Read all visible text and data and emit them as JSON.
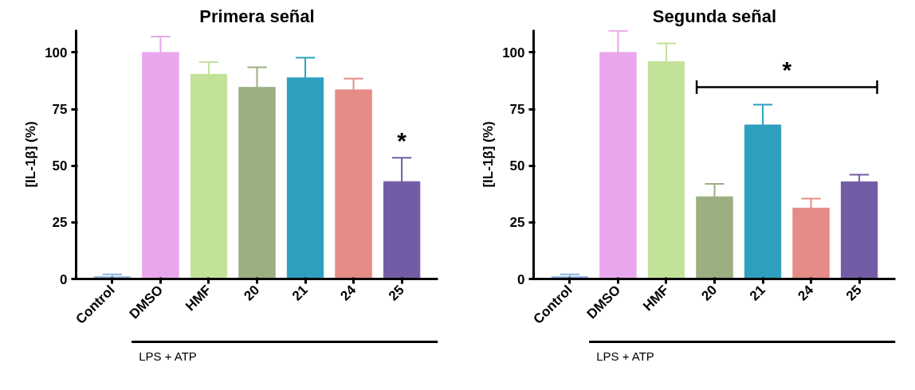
{
  "chart_data": [
    {
      "type": "bar",
      "title": "Primera señal",
      "ylabel": "[IL-1β] (%)",
      "categories": [
        "Control",
        "DMSO",
        "HMF",
        "20",
        "21",
        "24",
        "25"
      ],
      "values": [
        1,
        100,
        90.4,
        84.6,
        88.8,
        83.5,
        43
      ],
      "colors": [
        "#8fb4e0",
        "#e9a6ec",
        "#c3e299",
        "#9baf80",
        "#2f9fbf",
        "#e58c87",
        "#735ca6"
      ],
      "errors": [
        [
          1,
          2
        ],
        [
          100,
          107
        ],
        [
          90.4,
          95.8
        ],
        [
          84.6,
          93.5
        ],
        [
          88.8,
          97.7
        ],
        [
          83.5,
          88.5
        ],
        [
          43,
          53.5
        ]
      ],
      "ylim": [
        0,
        110
      ],
      "yticks": [
        0,
        25,
        50,
        75,
        100
      ],
      "grid": false,
      "annotations": [
        "*",
        "LPS + ATP"
      ]
    },
    {
      "type": "bar",
      "title": "Segunda señal",
      "ylabel": "[IL-1β] (%)",
      "categories": [
        "Control",
        "DMSO",
        "HMF",
        "20",
        "21",
        "24",
        "25"
      ],
      "values": [
        1,
        100,
        96,
        36.3,
        68,
        31.3,
        42.9
      ],
      "colors": [
        "#8fb4e0",
        "#e9a6ec",
        "#c3e299",
        "#9baf80",
        "#2f9fbf",
        "#e58c87",
        "#735ca6"
      ],
      "errors": [
        [
          1,
          2
        ],
        [
          100,
          109.6
        ],
        [
          96,
          104
        ],
        [
          36.3,
          42
        ],
        [
          68,
          77
        ],
        [
          31.3,
          35.5
        ],
        [
          42.9,
          46
        ]
      ],
      "ylim": [
        0,
        110
      ],
      "yticks": [
        0,
        25,
        50,
        75,
        100
      ],
      "grid": false,
      "annotations": [
        "*",
        "LPS + ATP"
      ]
    }
  ]
}
